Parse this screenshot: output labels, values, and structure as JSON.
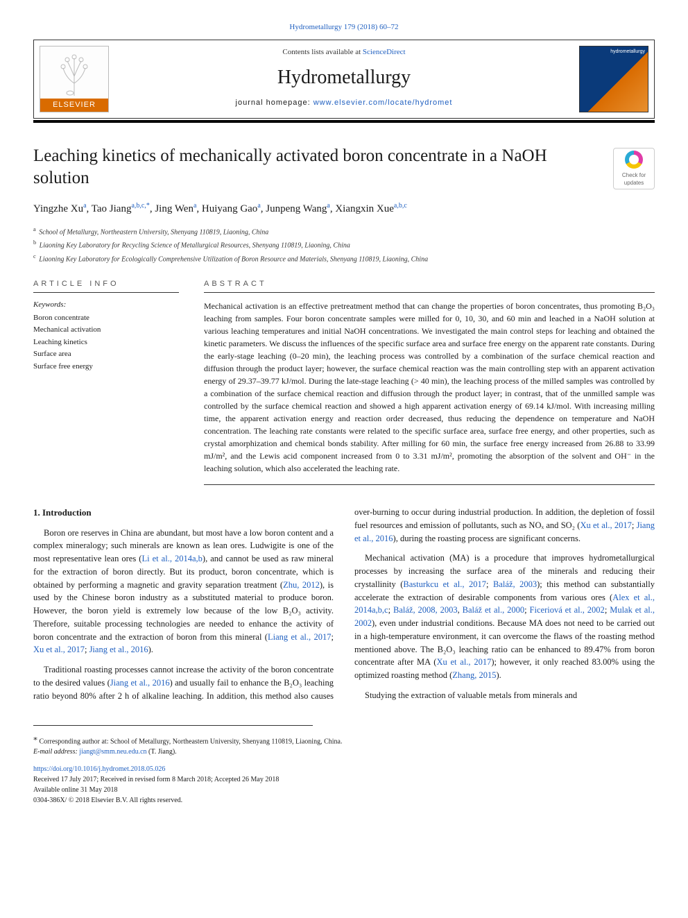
{
  "journal": {
    "top_citation": "Hydrometallurgy 179 (2018) 60–72",
    "contents_prefix": "Contents lists available at ",
    "contents_link_label": "ScienceDirect",
    "name": "Hydrometallurgy",
    "homepage_prefix": "journal homepage: ",
    "homepage_url": "www.elsevier.com/locate/hydromet",
    "publisher_brand": "ELSEVIER",
    "cover_label": "hydrometallurgy"
  },
  "check_updates_label": "Check for updates",
  "article": {
    "title": "Leaching kinetics of mechanically activated boron concentrate in a NaOH solution",
    "authors_html": "Yingzhe Xu<sup>a</sup>, Tao Jiang<sup>a,b,c,*</sup>, Jing Wen<sup>a</sup>, Huiyang Gao<sup>a</sup>, Junpeng Wang<sup>a</sup>, Xiangxin Xue<sup>a,b,c</sup>",
    "affiliations": [
      {
        "mark": "a",
        "text": "School of Metallurgy, Northeastern University, Shenyang 110819, Liaoning, China"
      },
      {
        "mark": "b",
        "text": "Liaoning Key Laboratory for Recycling Science of Metallurgical Resources, Shenyang 110819, Liaoning, China"
      },
      {
        "mark": "c",
        "text": "Liaoning Key Laboratory for Ecologically Comprehensive Utilization of Boron Resource and Materials, Shenyang 110819, Liaoning, China"
      }
    ]
  },
  "info": {
    "heading": "ARTICLE INFO",
    "keywords_label": "Keywords:",
    "keywords": [
      "Boron concentrate",
      "Mechanical activation",
      "Leaching kinetics",
      "Surface area",
      "Surface free energy"
    ]
  },
  "abstract": {
    "heading": "ABSTRACT",
    "text": "Mechanical activation is an effective pretreatment method that can change the properties of boron concentrates, thus promoting B₂O₃ leaching from samples. Four boron concentrate samples were milled for 0, 10, 30, and 60 min and leached in a NaOH solution at various leaching temperatures and initial NaOH concentrations. We investigated the main control steps for leaching and obtained the kinetic parameters. We discuss the influences of the specific surface area and surface free energy on the apparent rate constants. During the early-stage leaching (0–20 min), the leaching process was controlled by a combination of the surface chemical reaction and diffusion through the product layer; however, the surface chemical reaction was the main controlling step with an apparent activation energy of 29.37–39.77 kJ/mol. During the late-stage leaching (> 40 min), the leaching process of the milled samples was controlled by a combination of the surface chemical reaction and diffusion through the product layer; in contrast, that of the unmilled sample was controlled by the surface chemical reaction and showed a high apparent activation energy of 69.14 kJ/mol. With increasing milling time, the apparent activation energy and reaction order decreased, thus reducing the dependence on temperature and NaOH concentration. The leaching rate constants were related to the specific surface area, surface free energy, and other properties, such as crystal amorphization and chemical bonds stability. After milling for 60 min, the surface free energy increased from 26.88 to 33.99 mJ/m², and the Lewis acid component increased from 0 to 3.31 mJ/m², promoting the absorption of the solvent and OH⁻ in the leaching solution, which also accelerated the leaching rate."
  },
  "body": {
    "section_heading": "1. Introduction",
    "paragraphs": [
      "Boron ore reserves in China are abundant, but most have a low boron content and a complex mineralogy; such minerals are known as lean ores. Ludwigite is one of the most representative lean ores (<span class=\"cite\">Li et al., 2014a,b</span>), and cannot be used as raw mineral for the extraction of boron directly. But its product, boron concentrate, which is obtained by performing a magnetic and gravity separation treatment (<span class=\"cite\">Zhu, 2012</span>), is used by the Chinese boron industry as a substituted material to produce boron. However, the boron yield is extremely low because of the low B₂O₃ activity. Therefore, suitable processing technologies are needed to enhance the activity of boron concentrate and the extraction of boron from this mineral (<span class=\"cite\">Liang et al., 2017</span>; <span class=\"cite\">Xu et al., 2017</span>; <span class=\"cite\">Jiang et al., 2016</span>).",
      "Traditional roasting processes cannot increase the activity of the boron concentrate to the desired values (<span class=\"cite\">Jiang et al., 2016</span>) and usually fail to enhance the B₂O₃ leaching ratio beyond 80% after 2 h of alkaline leaching. In addition, this method also causes over-burning to occur during industrial production. In addition, the depletion of fossil fuel resources and emission of pollutants, such as NOₓ and SO₂ (<span class=\"cite\">Xu et al., 2017</span>; <span class=\"cite\">Jiang et al., 2016</span>), during the roasting process are significant concerns.",
      "Mechanical activation (MA) is a procedure that improves hydrometallurgical processes by increasing the surface area of the minerals and reducing their crystallinity (<span class=\"cite\">Basturkcu et al., 2017</span>; <span class=\"cite\">Baláž, 2003</span>); this method can substantially accelerate the extraction of desirable components from various ores (<span class=\"cite\">Alex et al., 2014a,b,c</span>; <span class=\"cite\">Baláž, 2008, 2003</span>, <span class=\"cite\">Baláž et al., 2000</span>; <span class=\"cite\">Ficeriová et al., 2002</span>; <span class=\"cite\">Mulak et al., 2002</span>), even under industrial conditions. Because MA does not need to be carried out in a high-temperature environment, it can overcome the flaws of the roasting method mentioned above. The B₂O₃ leaching ratio can be enhanced to 89.47% from boron concentrate after MA (<span class=\"cite\">Xu et al., 2017</span>); however, it only reached 83.00% using the optimized roasting method (<span class=\"cite\">Zhang, 2015</span>).",
      "Studying the extraction of valuable metals from minerals and"
    ]
  },
  "footer": {
    "corresponding": "Corresponding author at: School of Metallurgy, Northeastern University, Shenyang 110819, Liaoning, China.",
    "email_label": "E-mail address: ",
    "email": "jiangt@smm.neu.edu.cn",
    "email_suffix": " (T. Jiang).",
    "doi": "https://doi.org/10.1016/j.hydromet.2018.05.026",
    "history": "Received 17 July 2017; Received in revised form 8 March 2018; Accepted 26 May 2018",
    "available": "Available online 31 May 2018",
    "copyright": "0304-386X/ © 2018 Elsevier B.V. All rights reserved."
  },
  "colors": {
    "link": "#2060c0",
    "elsevier_orange": "#d96b00",
    "text": "#1a1a1a"
  }
}
